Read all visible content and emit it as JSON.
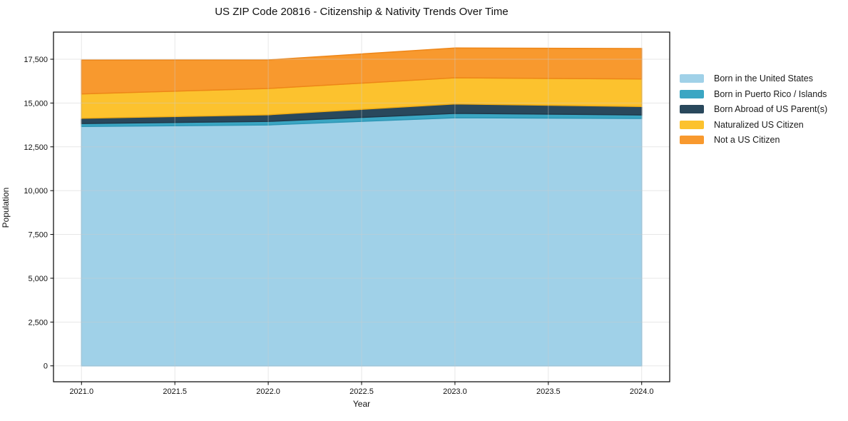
{
  "chart_data": {
    "type": "area",
    "stacked": true,
    "title": "US ZIP Code 20816 - Citizenship & Nativity Trends Over Time",
    "xlabel": "Year",
    "ylabel": "Population",
    "x": [
      2021,
      2022,
      2023,
      2024
    ],
    "series": [
      {
        "name": "Born in the United States",
        "values": [
          13660,
          13750,
          14160,
          14120
        ],
        "fill": "#a0d1e8",
        "line": "#8cc4e0"
      },
      {
        "name": "Born in Puerto Rico / Islands",
        "values": [
          170,
          200,
          250,
          200
        ],
        "fill": "#3aa6c3",
        "line": "#2e97b6"
      },
      {
        "name": "Born Abroad of US Parent(s)",
        "values": [
          300,
          380,
          540,
          480
        ],
        "fill": "#29485c",
        "line": "#20394a"
      },
      {
        "name": "Naturalized US Citizen",
        "values": [
          1390,
          1500,
          1490,
          1570
        ],
        "fill": "#fcc22e",
        "line": "#f0ac14"
      },
      {
        "name": "Not a US Citizen",
        "values": [
          1930,
          1630,
          1700,
          1740
        ],
        "fill": "#f8992e",
        "line": "#ee8618"
      }
    ],
    "xlim": [
      2020.85,
      2024.15
    ],
    "ylim": [
      -907,
      19047
    ],
    "x_ticks": {
      "values": [
        2021,
        2021.5,
        2022,
        2022.5,
        2023,
        2023.5,
        2024
      ],
      "labels": [
        "2021.0",
        "2021.5",
        "2022.0",
        "2022.5",
        "2023.0",
        "2023.5",
        "2024.0"
      ]
    },
    "y_ticks": {
      "values": [
        0,
        2500,
        5000,
        7500,
        10000,
        12500,
        15000,
        17500
      ],
      "labels": [
        "0",
        "2,500",
        "5,000",
        "7,500",
        "10,000",
        "12,500",
        "15,000",
        "17,500"
      ]
    },
    "grid": true,
    "grid_color": "#cccccc",
    "spine_color": "#000000",
    "legend_position": "right"
  }
}
